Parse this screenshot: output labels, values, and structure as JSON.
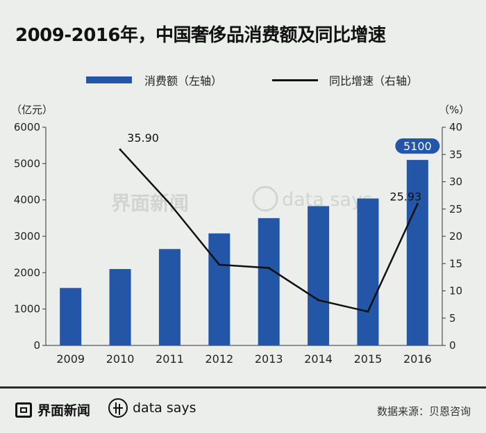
{
  "title": "2009-2016年，中国奢侈品消费额及同比增速",
  "legend": {
    "bar_label": "消费额（左轴）",
    "line_label": "同比增速（右轴）"
  },
  "footer": {
    "logo_text": "界面新闻",
    "ds_text": "data says",
    "source": "数据来源：贝恩咨询"
  },
  "colors": {
    "bar": "#2456a7",
    "line": "#111111",
    "background": "#eceeec"
  },
  "chart_data": {
    "type": "bar",
    "title": "2009-2016年，中国奢侈品消费额及同比增速",
    "categories": [
      "2009",
      "2010",
      "2011",
      "2012",
      "2013",
      "2014",
      "2015",
      "2016"
    ],
    "series": [
      {
        "name": "消费额（左轴）",
        "axis": "left",
        "type": "bar",
        "values": [
          1580,
          2100,
          2650,
          3080,
          3500,
          3830,
          4040,
          5100
        ]
      },
      {
        "name": "同比增速（右轴）",
        "axis": "right",
        "type": "line",
        "values": [
          null,
          35.9,
          26.0,
          14.8,
          14.2,
          8.3,
          6.2,
          25.93
        ]
      }
    ],
    "y_left": {
      "unit": "（亿元）",
      "ylim": [
        0,
        6000
      ],
      "ticks": [
        0,
        1000,
        2000,
        3000,
        4000,
        5000,
        6000
      ]
    },
    "y_right": {
      "unit": "（%）",
      "ylim": [
        0,
        40
      ],
      "ticks": [
        0,
        5,
        10,
        15,
        20,
        25,
        30,
        35,
        40
      ]
    },
    "annotations": [
      {
        "text": "35.90",
        "series": 1,
        "index": 1
      },
      {
        "text": "25.93",
        "series": 1,
        "index": 7
      },
      {
        "text": "5100",
        "series": 0,
        "index": 7,
        "highlight": true
      }
    ],
    "grid": false,
    "legend_position": "top"
  },
  "watermark": {
    "logo_text": "界面新闻",
    "ds_text": "data says"
  }
}
